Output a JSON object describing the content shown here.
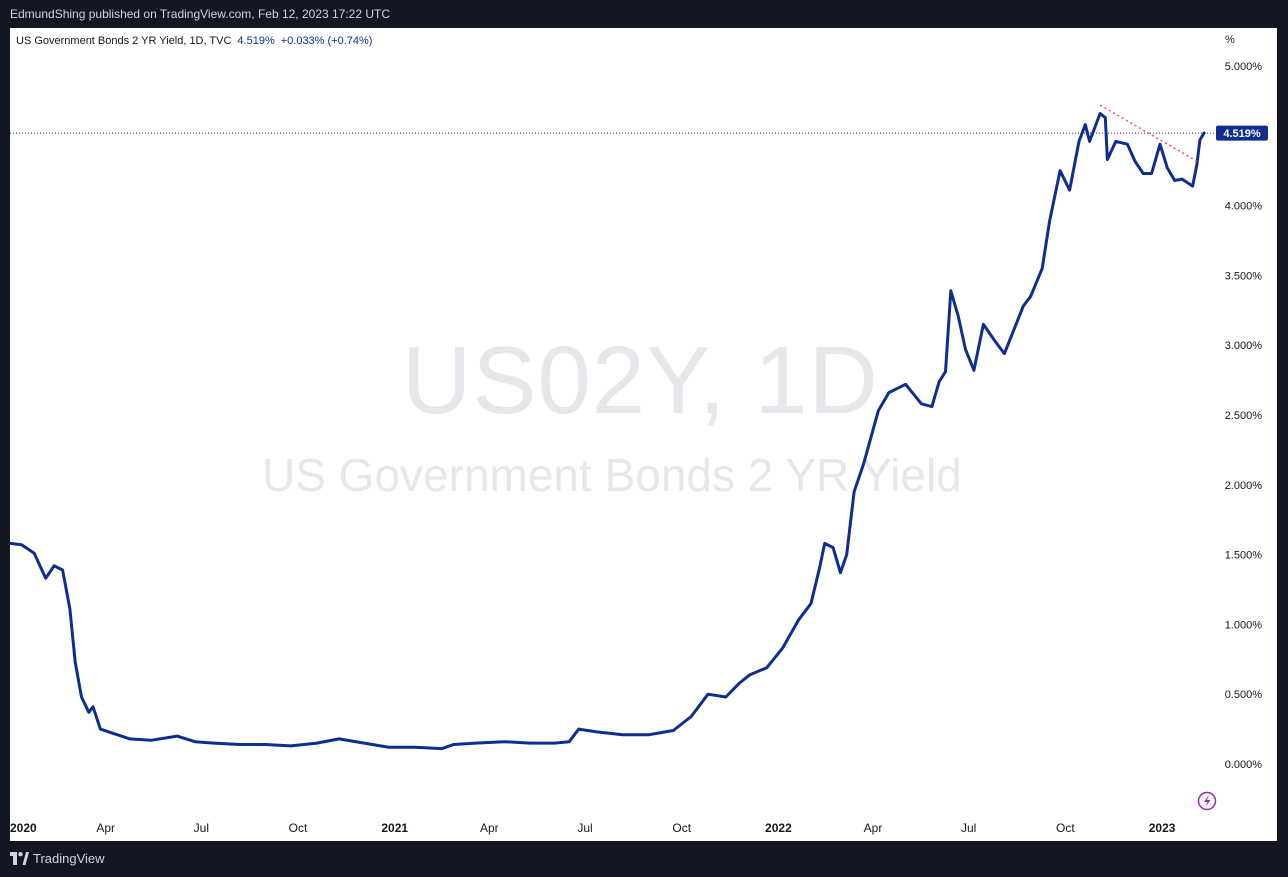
{
  "header": {
    "publisher_text": "EdmundShing published on TradingView.com, Feb 12, 2023 17:22 UTC"
  },
  "legend": {
    "title": "US Government Bonds 2 YR Yield, 1D, TVC",
    "value": "4.519%",
    "change": "+0.033% (+0.74%)"
  },
  "watermark": {
    "ticker": "US02Y, 1D",
    "name": "US Government Bonds 2 YR Yield"
  },
  "footer": {
    "brand": "TradingView"
  },
  "colors": {
    "line": "#0d2e8e",
    "trendline": "#ef5350",
    "price_tag": "#0d2e8e",
    "background": "#ffffff",
    "page": "#131722"
  },
  "icons": {
    "replay": "lightning-icon",
    "logo": "tradingview-logo-icon"
  },
  "chart_data": {
    "type": "line",
    "unit_label": "%",
    "y_ticks": [
      "5.000%",
      "4.500%",
      "4.000%",
      "3.500%",
      "3.000%",
      "2.500%",
      "2.000%",
      "1.500%",
      "1.000%",
      "0.500%",
      "0.000%"
    ],
    "y_tick_values": [
      5.0,
      4.5,
      4.0,
      3.5,
      3.0,
      2.5,
      2.0,
      1.5,
      1.0,
      0.5,
      0.0
    ],
    "ylim": [
      0.0,
      5.0
    ],
    "x_ticks": [
      {
        "label": "2020",
        "bold": true,
        "date": "2020-01-01"
      },
      {
        "label": "Apr",
        "bold": false,
        "date": "2020-04-01"
      },
      {
        "label": "Jul",
        "bold": false,
        "date": "2020-07-01"
      },
      {
        "label": "Oct",
        "bold": false,
        "date": "2020-10-01"
      },
      {
        "label": "2021",
        "bold": true,
        "date": "2021-01-01"
      },
      {
        "label": "Apr",
        "bold": false,
        "date": "2021-04-01"
      },
      {
        "label": "Jul",
        "bold": false,
        "date": "2021-07-01"
      },
      {
        "label": "Oct",
        "bold": false,
        "date": "2021-10-01"
      },
      {
        "label": "2022",
        "bold": true,
        "date": "2022-01-01"
      },
      {
        "label": "Apr",
        "bold": false,
        "date": "2022-04-01"
      },
      {
        "label": "Jul",
        "bold": false,
        "date": "2022-07-01"
      },
      {
        "label": "Oct",
        "bold": false,
        "date": "2022-10-01"
      },
      {
        "label": "2023",
        "bold": true,
        "date": "2023-01-01"
      }
    ],
    "x_range": [
      "2020-01-01",
      "2023-02-27"
    ],
    "series": [
      {
        "x": [
          "2020-01-01",
          "2020-01-12",
          "2020-01-24",
          "2020-02-04",
          "2020-02-12",
          "2020-02-20",
          "2020-02-27",
          "2020-03-03",
          "2020-03-09",
          "2020-03-16",
          "2020-03-20",
          "2020-03-27",
          "2020-04-08",
          "2020-04-24",
          "2020-05-14",
          "2020-06-08",
          "2020-06-25",
          "2020-07-13",
          "2020-08-06",
          "2020-08-31",
          "2020-09-24",
          "2020-10-19",
          "2020-11-09",
          "2020-12-03",
          "2020-12-26",
          "2021-01-20",
          "2021-02-15",
          "2021-02-26",
          "2021-03-19",
          "2021-04-15",
          "2021-05-10",
          "2021-06-02",
          "2021-06-16",
          "2021-06-25",
          "2021-07-12",
          "2021-08-06",
          "2021-08-31",
          "2021-09-23",
          "2021-10-10",
          "2021-10-26",
          "2021-11-12",
          "2021-11-25",
          "2021-12-05",
          "2021-12-21",
          "2022-01-05",
          "2022-01-20",
          "2022-02-01",
          "2022-02-09",
          "2022-02-14",
          "2022-02-22",
          "2022-03-01",
          "2022-03-07",
          "2022-03-14",
          "2022-03-23",
          "2022-04-06",
          "2022-04-16",
          "2022-05-02",
          "2022-05-17",
          "2022-05-27",
          "2022-06-03",
          "2022-06-09",
          "2022-06-14",
          "2022-06-21",
          "2022-06-28",
          "2022-07-06",
          "2022-07-15",
          "2022-07-26",
          "2022-08-04",
          "2022-08-22",
          "2022-08-29",
          "2022-09-09",
          "2022-09-16",
          "2022-09-26",
          "2022-10-05",
          "2022-10-14",
          "2022-10-20",
          "2022-10-24",
          "2022-11-03",
          "2022-11-08",
          "2022-11-10",
          "2022-11-18",
          "2022-11-29",
          "2022-12-06",
          "2022-12-14",
          "2022-12-22",
          "2022-12-30",
          "2023-01-06",
          "2023-01-13",
          "2023-01-20",
          "2023-01-30",
          "2023-02-03",
          "2023-02-06",
          "2023-02-10"
        ],
        "y": [
          1.58,
          1.57,
          1.51,
          1.33,
          1.42,
          1.39,
          1.11,
          0.73,
          0.48,
          0.37,
          0.41,
          0.25,
          0.22,
          0.18,
          0.17,
          0.2,
          0.16,
          0.15,
          0.14,
          0.14,
          0.13,
          0.15,
          0.18,
          0.15,
          0.12,
          0.12,
          0.11,
          0.14,
          0.15,
          0.16,
          0.15,
          0.15,
          0.16,
          0.25,
          0.23,
          0.21,
          0.21,
          0.24,
          0.34,
          0.5,
          0.48,
          0.58,
          0.64,
          0.69,
          0.83,
          1.03,
          1.15,
          1.4,
          1.58,
          1.55,
          1.37,
          1.5,
          1.95,
          2.15,
          2.53,
          2.66,
          2.72,
          2.58,
          2.56,
          2.74,
          2.81,
          3.39,
          3.21,
          2.97,
          2.82,
          3.15,
          3.03,
          2.94,
          3.28,
          3.35,
          3.55,
          3.89,
          4.25,
          4.11,
          4.46,
          4.58,
          4.46,
          4.66,
          4.63,
          4.33,
          4.46,
          4.44,
          4.32,
          4.23,
          4.23,
          4.44,
          4.27,
          4.18,
          4.19,
          4.14,
          4.29,
          4.47,
          4.52
        ]
      }
    ],
    "last_value": 4.519,
    "trendline": {
      "from": {
        "x": "2022-11-03",
        "y": 4.72
      },
      "to": {
        "x": "2023-02-05",
        "y": 4.31
      }
    }
  }
}
